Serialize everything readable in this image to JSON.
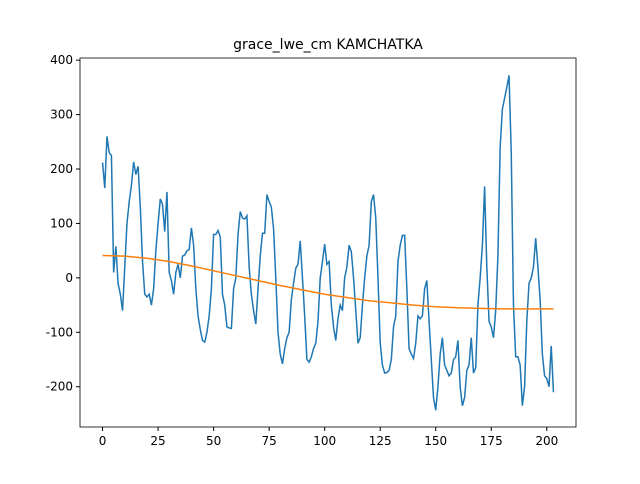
{
  "chart_data": {
    "type": "line",
    "title": "grace_lwe_cm KAMCHATKA",
    "xlim": [
      -10.15,
      213.15
    ],
    "ylim": [
      -274,
      404
    ],
    "xticks": [
      0,
      25,
      50,
      75,
      100,
      125,
      150,
      175,
      200
    ],
    "yticks": [
      -200,
      -100,
      0,
      100,
      200,
      300,
      400
    ],
    "series": [
      {
        "color": "#1f77b4",
        "x": [
          0,
          1,
          2,
          3,
          4,
          5,
          6,
          7,
          8,
          9,
          10,
          11,
          12,
          13,
          14,
          15,
          16,
          17,
          18,
          19,
          20,
          21,
          22,
          23,
          24,
          25,
          26,
          27,
          28,
          29,
          30,
          31,
          32,
          33,
          34,
          35,
          36,
          37,
          38,
          39,
          40,
          41,
          42,
          43,
          44,
          45,
          46,
          47,
          48,
          49,
          50,
          51,
          52,
          53,
          54,
          55,
          56,
          57,
          58,
          59,
          60,
          61,
          62,
          63,
          64,
          65,
          66,
          67,
          68,
          69,
          70,
          71,
          72,
          73,
          74,
          75,
          76,
          77,
          78,
          79,
          80,
          81,
          82,
          83,
          84,
          85,
          86,
          87,
          88,
          89,
          90,
          91,
          92,
          93,
          94,
          95,
          96,
          97,
          98,
          99,
          100,
          101,
          102,
          103,
          104,
          105,
          106,
          107,
          108,
          109,
          110,
          111,
          112,
          113,
          114,
          115,
          116,
          117,
          118,
          119,
          120,
          121,
          122,
          123,
          124,
          125,
          126,
          127,
          128,
          129,
          130,
          131,
          132,
          133,
          134,
          135,
          136,
          137,
          138,
          139,
          140,
          141,
          142,
          143,
          144,
          145,
          146,
          147,
          148,
          149,
          150,
          151,
          152,
          153,
          154,
          155,
          156,
          157,
          158,
          159,
          160,
          161,
          162,
          163,
          164,
          165,
          166,
          167,
          168,
          169,
          170,
          171,
          172,
          173,
          174,
          175,
          176,
          177,
          178,
          179,
          180,
          181,
          182,
          183,
          184,
          185,
          186,
          187,
          188,
          189,
          190,
          191,
          192,
          193,
          194,
          195,
          196,
          197,
          198,
          199,
          200,
          201,
          202,
          203
        ],
        "values": [
          212,
          165,
          260,
          230,
          225,
          10,
          58,
          -10,
          -30,
          -60,
          20,
          100,
          140,
          170,
          213,
          190,
          205,
          130,
          30,
          -30,
          -35,
          -30,
          -50,
          -20,
          50,
          100,
          145,
          135,
          85,
          158,
          10,
          -5,
          -30,
          10,
          25,
          0,
          40,
          42,
          50,
          52,
          92,
          60,
          -20,
          -70,
          -95,
          -115,
          -118,
          -100,
          -70,
          -20,
          80,
          80,
          87,
          75,
          -30,
          -50,
          -90,
          -92,
          -93,
          -20,
          0,
          80,
          122,
          110,
          108,
          114,
          20,
          -30,
          -60,
          -85,
          -20,
          40,
          82,
          82,
          153,
          140,
          130,
          90,
          0,
          -100,
          -140,
          -158,
          -130,
          -110,
          -100,
          -40,
          -10,
          18,
          25,
          68,
          0,
          -70,
          -150,
          -155,
          -145,
          -130,
          -120,
          -80,
          0,
          30,
          62,
          25,
          30,
          -50,
          -90,
          -115,
          -75,
          -50,
          -60,
          0,
          20,
          60,
          48,
          0,
          -60,
          -120,
          -110,
          -50,
          0,
          40,
          60,
          140,
          153,
          110,
          0,
          -120,
          -160,
          -175,
          -174,
          -170,
          -150,
          -90,
          -70,
          30,
          60,
          78,
          78,
          -20,
          -130,
          -140,
          -148,
          -120,
          -70,
          -75,
          -70,
          -20,
          -5,
          -80,
          -150,
          -220,
          -243,
          -200,
          -140,
          -110,
          -160,
          -170,
          -180,
          -175,
          -150,
          -145,
          -115,
          -200,
          -235,
          -220,
          -170,
          -160,
          -110,
          -175,
          -165,
          -50,
          0,
          60,
          168,
          20,
          -80,
          -90,
          -110,
          -60,
          40,
          240,
          310,
          330,
          350,
          372,
          230,
          -50,
          -145,
          -145,
          -160,
          -235,
          -200,
          -80,
          -10,
          0,
          20,
          73,
          20,
          -40,
          -140,
          -180,
          -185,
          -200,
          -125,
          -210
        ]
      },
      {
        "color": "#ff7f0e",
        "x": [
          0,
          10,
          20,
          30,
          40,
          50,
          60,
          70,
          80,
          90,
          100,
          110,
          120,
          130,
          140,
          150,
          160,
          170,
          180,
          190,
          200,
          203
        ],
        "values": [
          41,
          40,
          36,
          30,
          22,
          13,
          4,
          -5,
          -14,
          -22,
          -30,
          -36,
          -42,
          -46,
          -50,
          -53,
          -55,
          -56,
          -57,
          -57,
          -57,
          -57
        ]
      }
    ]
  }
}
